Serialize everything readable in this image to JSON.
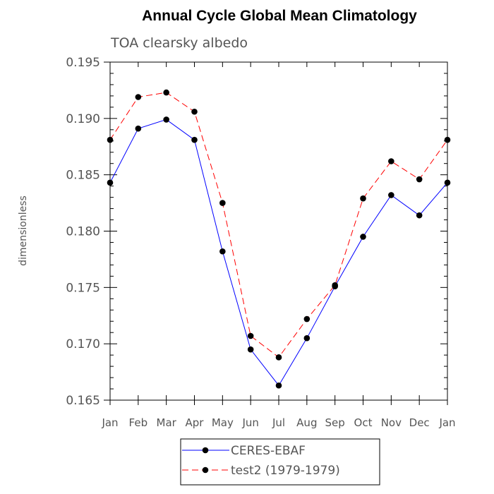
{
  "chart_data": {
    "type": "line",
    "title": "Annual Cycle Global Mean Climatology",
    "subtitle": "TOA clearsky albedo",
    "xlabel": "",
    "ylabel": "dimensionless",
    "categories": [
      "Jan",
      "Feb",
      "Mar",
      "Apr",
      "May",
      "Jun",
      "Jul",
      "Aug",
      "Sep",
      "Oct",
      "Nov",
      "Dec",
      "Jan"
    ],
    "ylim": [
      0.165,
      0.195
    ],
    "yticks": [
      0.165,
      0.17,
      0.175,
      0.18,
      0.185,
      0.19,
      0.195
    ],
    "ytick_labels": [
      "0.165",
      "0.170",
      "0.175",
      "0.180",
      "0.185",
      "0.190",
      "0.195"
    ],
    "grid": false,
    "legend_position": "bottom",
    "series": [
      {
        "name": "CERES-EBAF",
        "color": "#0000ff",
        "dash": "solid",
        "values": [
          0.1843,
          0.1891,
          0.1899,
          0.1881,
          0.1782,
          0.1695,
          0.1663,
          0.1705,
          0.1751,
          0.1795,
          0.1832,
          0.1814,
          0.1843
        ]
      },
      {
        "name": "test2 (1979-1979)",
        "color": "#ff0000",
        "dash": "dashed",
        "values": [
          0.1881,
          0.1919,
          0.1923,
          0.1906,
          0.1825,
          0.1707,
          0.1688,
          0.1722,
          0.1752,
          0.1829,
          0.1862,
          0.1846,
          0.1881
        ]
      }
    ]
  }
}
